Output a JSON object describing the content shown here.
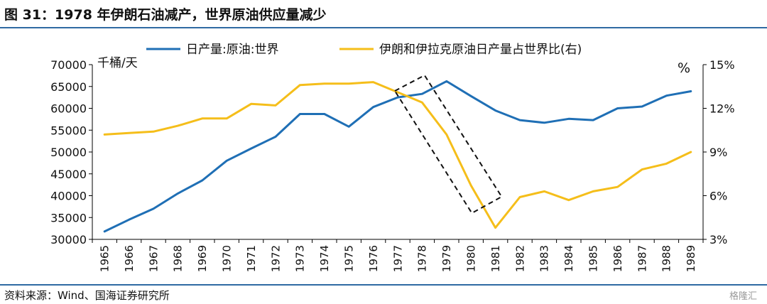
{
  "header": {
    "title": "图 31：1978 年伊朗石油减产，世界原油供应量减少"
  },
  "footer": {
    "source": "资料来源：Wind、国海证券研究所",
    "watermark": "格隆汇"
  },
  "chart_data": {
    "type": "line",
    "title": "图 31：1978 年伊朗石油减产，世界原油供应量减少",
    "left_unit": "千桶/天",
    "right_unit": "%",
    "categories": [
      "1965",
      "1966",
      "1967",
      "1968",
      "1969",
      "1970",
      "1971",
      "1972",
      "1973",
      "1974",
      "1975",
      "1976",
      "1977",
      "1978",
      "1979",
      "1980",
      "1981",
      "1982",
      "1983",
      "1984",
      "1985",
      "1986",
      "1987",
      "1988",
      "1989"
    ],
    "ylim_left": [
      30000,
      70000
    ],
    "yticks_left": [
      "30000",
      "35000",
      "40000",
      "45000",
      "50000",
      "55000",
      "60000",
      "65000",
      "70000"
    ],
    "ylim_right": [
      3,
      15
    ],
    "yticks_right": [
      "3%",
      "6%",
      "9%",
      "12%",
      "15%"
    ],
    "legend_position": "top",
    "grid": false,
    "series": [
      {
        "name": "日产量:原油:世界",
        "axis": "left",
        "color": "#1f6fb5",
        "values": [
          31800,
          34500,
          37000,
          40500,
          43500,
          48000,
          50800,
          53500,
          58700,
          58700,
          55800,
          60300,
          62500,
          63300,
          66200,
          62800,
          59500,
          57300,
          56700,
          57600,
          57300,
          60000,
          60400,
          62900,
          63900
        ]
      },
      {
        "name": "伊朗和伊拉克原油日产量占世界比(右)",
        "axis": "right",
        "color": "#f5be1a",
        "values": [
          10.2,
          10.3,
          10.4,
          10.8,
          11.3,
          11.3,
          12.3,
          12.2,
          13.6,
          13.7,
          13.7,
          13.8,
          13.1,
          12.4,
          10.2,
          6.7,
          3.8,
          5.9,
          6.3,
          5.7,
          6.3,
          6.6,
          7.8,
          8.2,
          9.0
        ]
      }
    ],
    "annotation": {
      "type": "dashed-box",
      "from": "1977",
      "to": "1980"
    }
  }
}
